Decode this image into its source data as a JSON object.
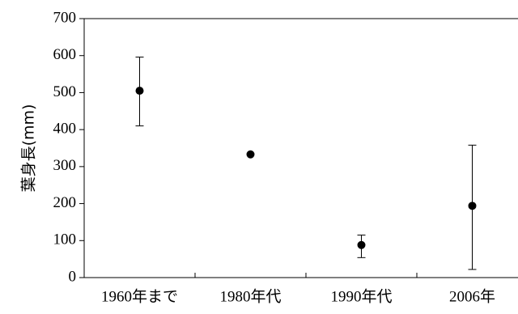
{
  "chart_data": {
    "type": "scatter",
    "ylabel": "葉身長(mm)",
    "categories": [
      "1960年まで",
      "1980年代",
      "1990年代",
      "2006年"
    ],
    "values": [
      505,
      333,
      88,
      194
    ],
    "error_low": [
      410,
      333,
      54,
      22
    ],
    "error_high": [
      596,
      333,
      115,
      358
    ],
    "ylim": [
      0,
      700
    ],
    "yticks": [
      0,
      100,
      200,
      300,
      400,
      500,
      600,
      700
    ],
    "yticklabels": [
      "0",
      "100",
      "200",
      "300",
      "400",
      "500",
      "600",
      "700"
    ],
    "grid": false,
    "colors": {
      "marker": "#000000",
      "axis": "#000000"
    }
  }
}
